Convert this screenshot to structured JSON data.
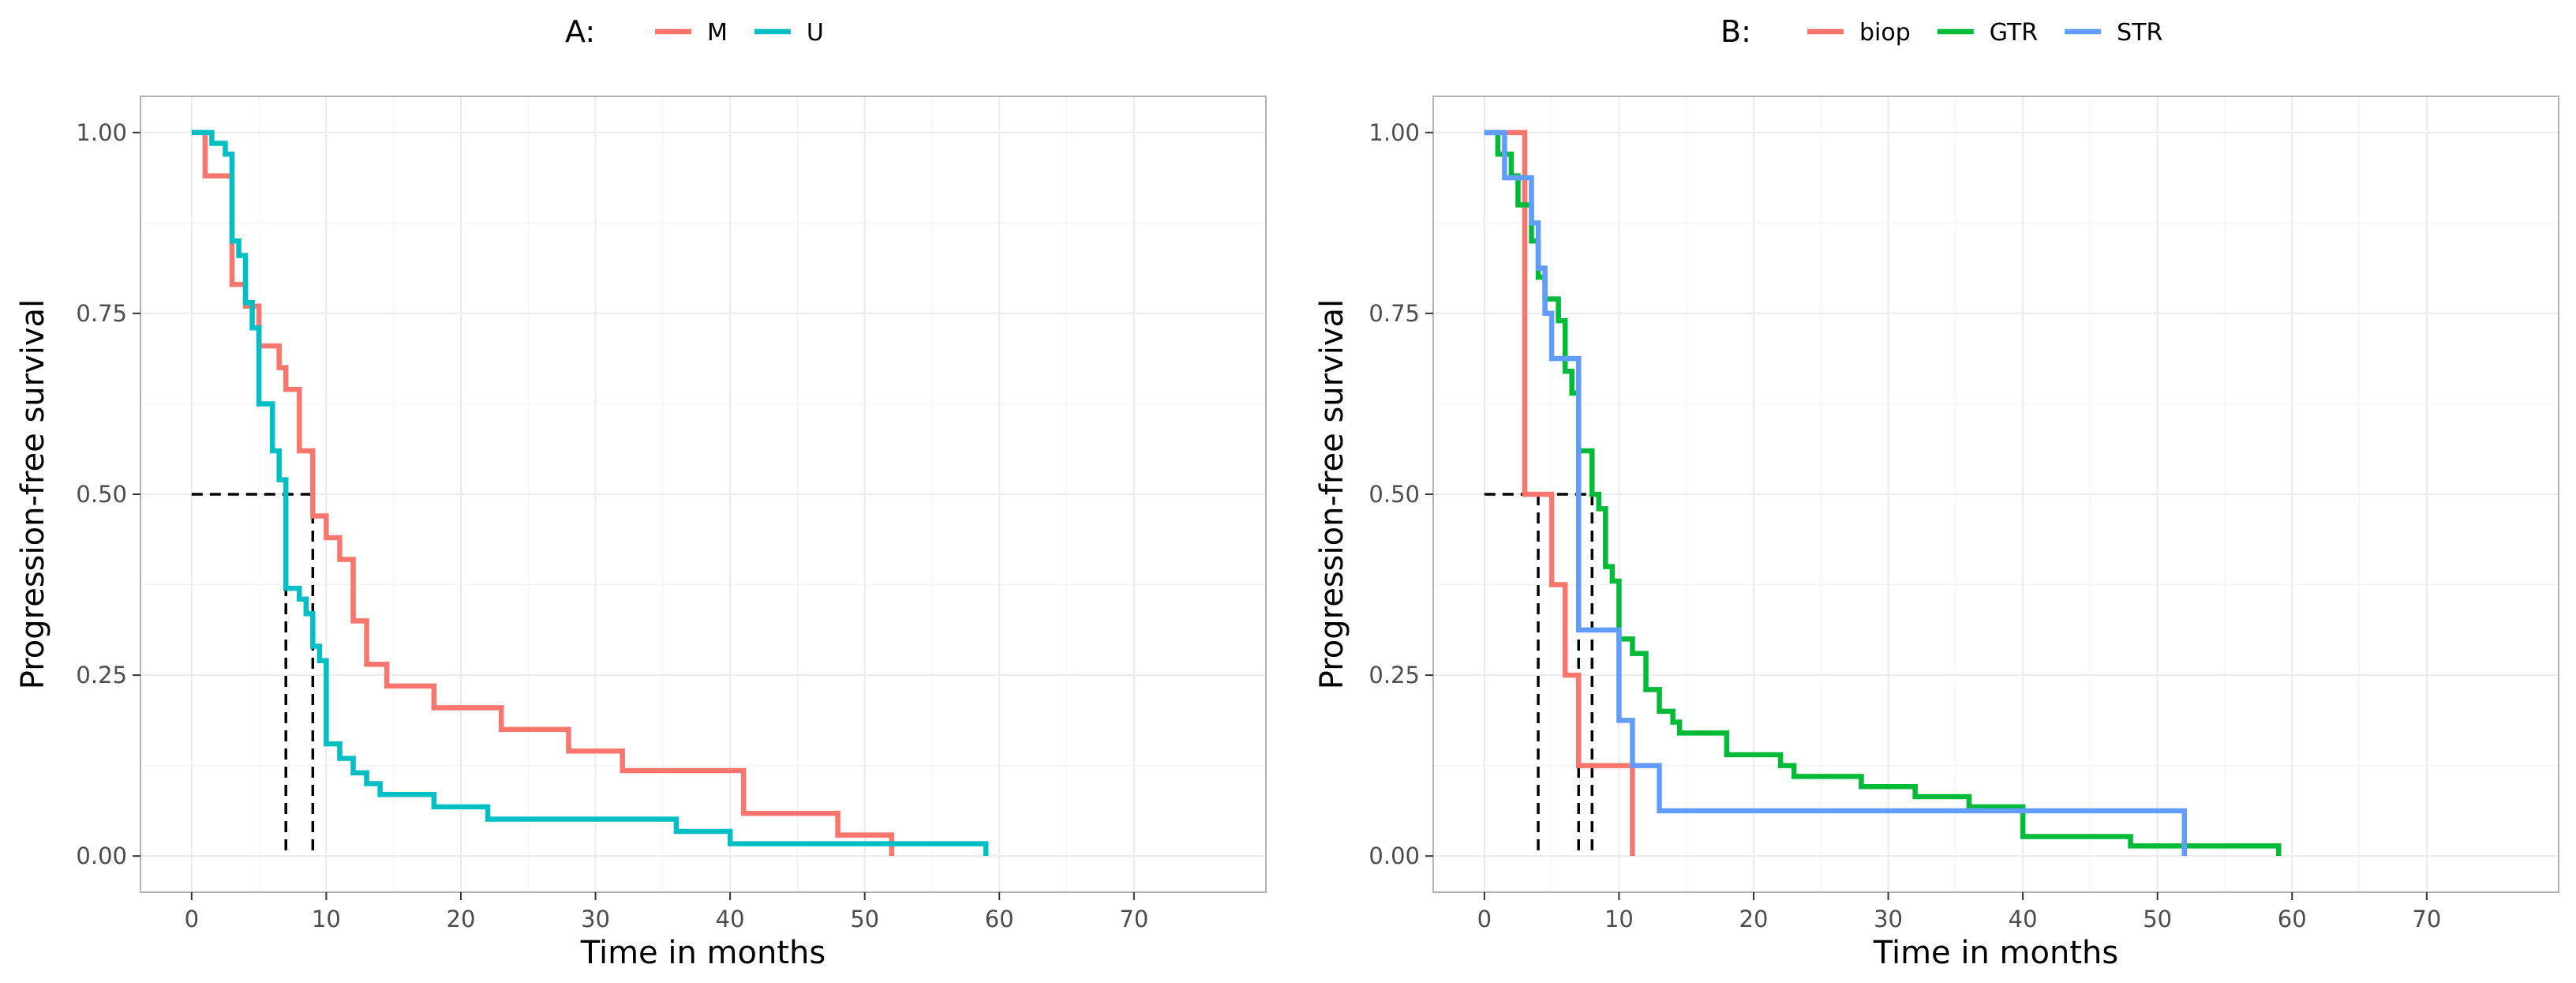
{
  "chart_data": [
    {
      "type": "line",
      "subtype": "kaplan-meier step",
      "title": "",
      "legend_title": "A:",
      "legend_position": "top",
      "xlabel": "Time in months",
      "ylabel": "Progression-free survival",
      "xlim": [
        -3.8,
        79.8
      ],
      "ylim": [
        -0.05,
        1.05
      ],
      "xticks": [
        0,
        10,
        20,
        30,
        40,
        50,
        60,
        70
      ],
      "xtick_labels": [
        "0",
        "10",
        "20",
        "30",
        "40",
        "50",
        "60",
        "70"
      ],
      "yticks": [
        0,
        0.25,
        0.5,
        0.75,
        1
      ],
      "ytick_labels": [
        "0.00",
        "0.25",
        "0.50",
        "0.75",
        "1.00"
      ],
      "grid": true,
      "series": [
        {
          "name": "M",
          "color": "#F8766D",
          "points": [
            [
              0,
              1
            ],
            [
              1,
              1
            ],
            [
              1,
              0.94
            ],
            [
              3,
              0.94
            ],
            [
              3,
              0.79
            ],
            [
              4,
              0.79
            ],
            [
              4,
              0.76
            ],
            [
              5,
              0.76
            ],
            [
              5,
              0.705
            ],
            [
              6.5,
              0.705
            ],
            [
              6.5,
              0.675
            ],
            [
              7,
              0.675
            ],
            [
              7,
              0.645
            ],
            [
              8,
              0.645
            ],
            [
              8,
              0.56
            ],
            [
              9,
              0.56
            ],
            [
              9,
              0.47
            ],
            [
              10,
              0.47
            ],
            [
              10,
              0.44
            ],
            [
              11,
              0.44
            ],
            [
              11,
              0.41
            ],
            [
              12,
              0.41
            ],
            [
              12,
              0.325
            ],
            [
              13,
              0.325
            ],
            [
              13,
              0.265
            ],
            [
              14.5,
              0.265
            ],
            [
              14.5,
              0.235
            ],
            [
              18,
              0.235
            ],
            [
              18,
              0.205
            ],
            [
              23,
              0.205
            ],
            [
              23,
              0.175
            ],
            [
              28,
              0.175
            ],
            [
              28,
              0.145
            ],
            [
              32,
              0.145
            ],
            [
              32,
              0.118
            ],
            [
              41,
              0.118
            ],
            [
              41,
              0.059
            ],
            [
              48,
              0.059
            ],
            [
              48,
              0.029
            ],
            [
              52,
              0.029
            ],
            [
              52,
              0
            ]
          ]
        },
        {
          "name": "U",
          "color": "#00BFC4",
          "points": [
            [
              0,
              1
            ],
            [
              1.5,
              1
            ],
            [
              1.5,
              0.985
            ],
            [
              2.5,
              0.985
            ],
            [
              2.5,
              0.97
            ],
            [
              3,
              0.97
            ],
            [
              3,
              0.85
            ],
            [
              3.5,
              0.85
            ],
            [
              3.5,
              0.83
            ],
            [
              4,
              0.83
            ],
            [
              4,
              0.765
            ],
            [
              4.5,
              0.765
            ],
            [
              4.5,
              0.73
            ],
            [
              5,
              0.73
            ],
            [
              5,
              0.625
            ],
            [
              6,
              0.625
            ],
            [
              6,
              0.56
            ],
            [
              6.5,
              0.56
            ],
            [
              6.5,
              0.52
            ],
            [
              7,
              0.52
            ],
            [
              7,
              0.37
            ],
            [
              8,
              0.37
            ],
            [
              8,
              0.355
            ],
            [
              8.5,
              0.355
            ],
            [
              8.5,
              0.335
            ],
            [
              9,
              0.335
            ],
            [
              9,
              0.29
            ],
            [
              9.5,
              0.29
            ],
            [
              9.5,
              0.27
            ],
            [
              10,
              0.27
            ],
            [
              10,
              0.155
            ],
            [
              11,
              0.155
            ],
            [
              11,
              0.135
            ],
            [
              12,
              0.135
            ],
            [
              12,
              0.115
            ],
            [
              13,
              0.115
            ],
            [
              13,
              0.1
            ],
            [
              14,
              0.1
            ],
            [
              14,
              0.085
            ],
            [
              18,
              0.085
            ],
            [
              18,
              0.068
            ],
            [
              22,
              0.068
            ],
            [
              22,
              0.051
            ],
            [
              36,
              0.051
            ],
            [
              36,
              0.034
            ],
            [
              40,
              0.034
            ],
            [
              40,
              0.017
            ],
            [
              59,
              0.017
            ],
            [
              59,
              0
            ]
          ]
        }
      ],
      "median_lines": [
        {
          "group": "U",
          "x": 7,
          "y": 0.5
        },
        {
          "group": "M",
          "x": 9,
          "y": 0.5
        }
      ]
    },
    {
      "type": "line",
      "subtype": "kaplan-meier step",
      "title": "",
      "legend_title": "B:",
      "legend_position": "top",
      "xlabel": "Time in months",
      "ylabel": "Progression-free survival",
      "xlim": [
        -3.8,
        79.8
      ],
      "ylim": [
        -0.05,
        1.05
      ],
      "xticks": [
        0,
        10,
        20,
        30,
        40,
        50,
        60,
        70
      ],
      "xtick_labels": [
        "0",
        "10",
        "20",
        "30",
        "40",
        "50",
        "60",
        "70"
      ],
      "yticks": [
        0,
        0.25,
        0.5,
        0.75,
        1
      ],
      "ytick_labels": [
        "0.00",
        "0.25",
        "0.50",
        "0.75",
        "1.00"
      ],
      "grid": true,
      "series": [
        {
          "name": "biop",
          "color": "#F8766D",
          "points": [
            [
              0,
              1
            ],
            [
              3,
              1
            ],
            [
              3,
              0.5
            ],
            [
              5,
              0.5
            ],
            [
              5,
              0.375
            ],
            [
              6,
              0.375
            ],
            [
              6,
              0.25
            ],
            [
              7,
              0.25
            ],
            [
              7,
              0.125
            ],
            [
              11,
              0.125
            ],
            [
              11,
              0
            ]
          ]
        },
        {
          "name": "GTR",
          "color": "#00BA38",
          "points": [
            [
              0,
              1
            ],
            [
              1,
              1
            ],
            [
              1,
              0.97
            ],
            [
              2,
              0.97
            ],
            [
              2,
              0.94
            ],
            [
              2.5,
              0.94
            ],
            [
              2.5,
              0.9
            ],
            [
              3.5,
              0.9
            ],
            [
              3.5,
              0.85
            ],
            [
              4,
              0.85
            ],
            [
              4,
              0.8
            ],
            [
              4.5,
              0.8
            ],
            [
              4.5,
              0.77
            ],
            [
              5.5,
              0.77
            ],
            [
              5.5,
              0.74
            ],
            [
              6,
              0.74
            ],
            [
              6,
              0.67
            ],
            [
              6.5,
              0.67
            ],
            [
              6.5,
              0.64
            ],
            [
              7,
              0.64
            ],
            [
              7,
              0.56
            ],
            [
              8,
              0.56
            ],
            [
              8,
              0.5
            ],
            [
              8.5,
              0.5
            ],
            [
              8.5,
              0.48
            ],
            [
              9,
              0.48
            ],
            [
              9,
              0.4
            ],
            [
              9.5,
              0.4
            ],
            [
              9.5,
              0.38
            ],
            [
              10,
              0.38
            ],
            [
              10,
              0.3
            ],
            [
              11,
              0.3
            ],
            [
              11,
              0.28
            ],
            [
              12,
              0.28
            ],
            [
              12,
              0.23
            ],
            [
              13,
              0.23
            ],
            [
              13,
              0.2
            ],
            [
              14,
              0.2
            ],
            [
              14,
              0.185
            ],
            [
              14.5,
              0.185
            ],
            [
              14.5,
              0.17
            ],
            [
              18,
              0.17
            ],
            [
              18,
              0.14
            ],
            [
              22,
              0.14
            ],
            [
              22,
              0.125
            ],
            [
              23,
              0.125
            ],
            [
              23,
              0.11
            ],
            [
              28,
              0.11
            ],
            [
              28,
              0.096
            ],
            [
              32,
              0.096
            ],
            [
              32,
              0.082
            ],
            [
              36,
              0.082
            ],
            [
              36,
              0.068
            ],
            [
              40,
              0.068
            ],
            [
              40,
              0.027
            ],
            [
              48,
              0.027
            ],
            [
              48,
              0.014
            ],
            [
              59,
              0.014
            ],
            [
              59,
              0
            ]
          ]
        },
        {
          "name": "STR",
          "color": "#619CFF",
          "points": [
            [
              0,
              1
            ],
            [
              1.5,
              1
            ],
            [
              1.5,
              0.9375
            ],
            [
              3.5,
              0.9375
            ],
            [
              3.5,
              0.875
            ],
            [
              4,
              0.875
            ],
            [
              4,
              0.8125
            ],
            [
              4.5,
              0.8125
            ],
            [
              4.5,
              0.75
            ],
            [
              5,
              0.75
            ],
            [
              5,
              0.6875
            ],
            [
              7,
              0.6875
            ],
            [
              7,
              0.3125
            ],
            [
              10,
              0.3125
            ],
            [
              10,
              0.1875
            ],
            [
              11,
              0.1875
            ],
            [
              11,
              0.125
            ],
            [
              13,
              0.125
            ],
            [
              13,
              0.0625
            ],
            [
              52,
              0.0625
            ],
            [
              52,
              0
            ]
          ]
        }
      ],
      "median_lines": [
        {
          "group": "biop",
          "x": 4,
          "y": 0.5
        },
        {
          "group": "STR",
          "x": 7,
          "y": 0.5
        },
        {
          "group": "GTR",
          "x": 8,
          "y": 0.5
        }
      ]
    }
  ]
}
